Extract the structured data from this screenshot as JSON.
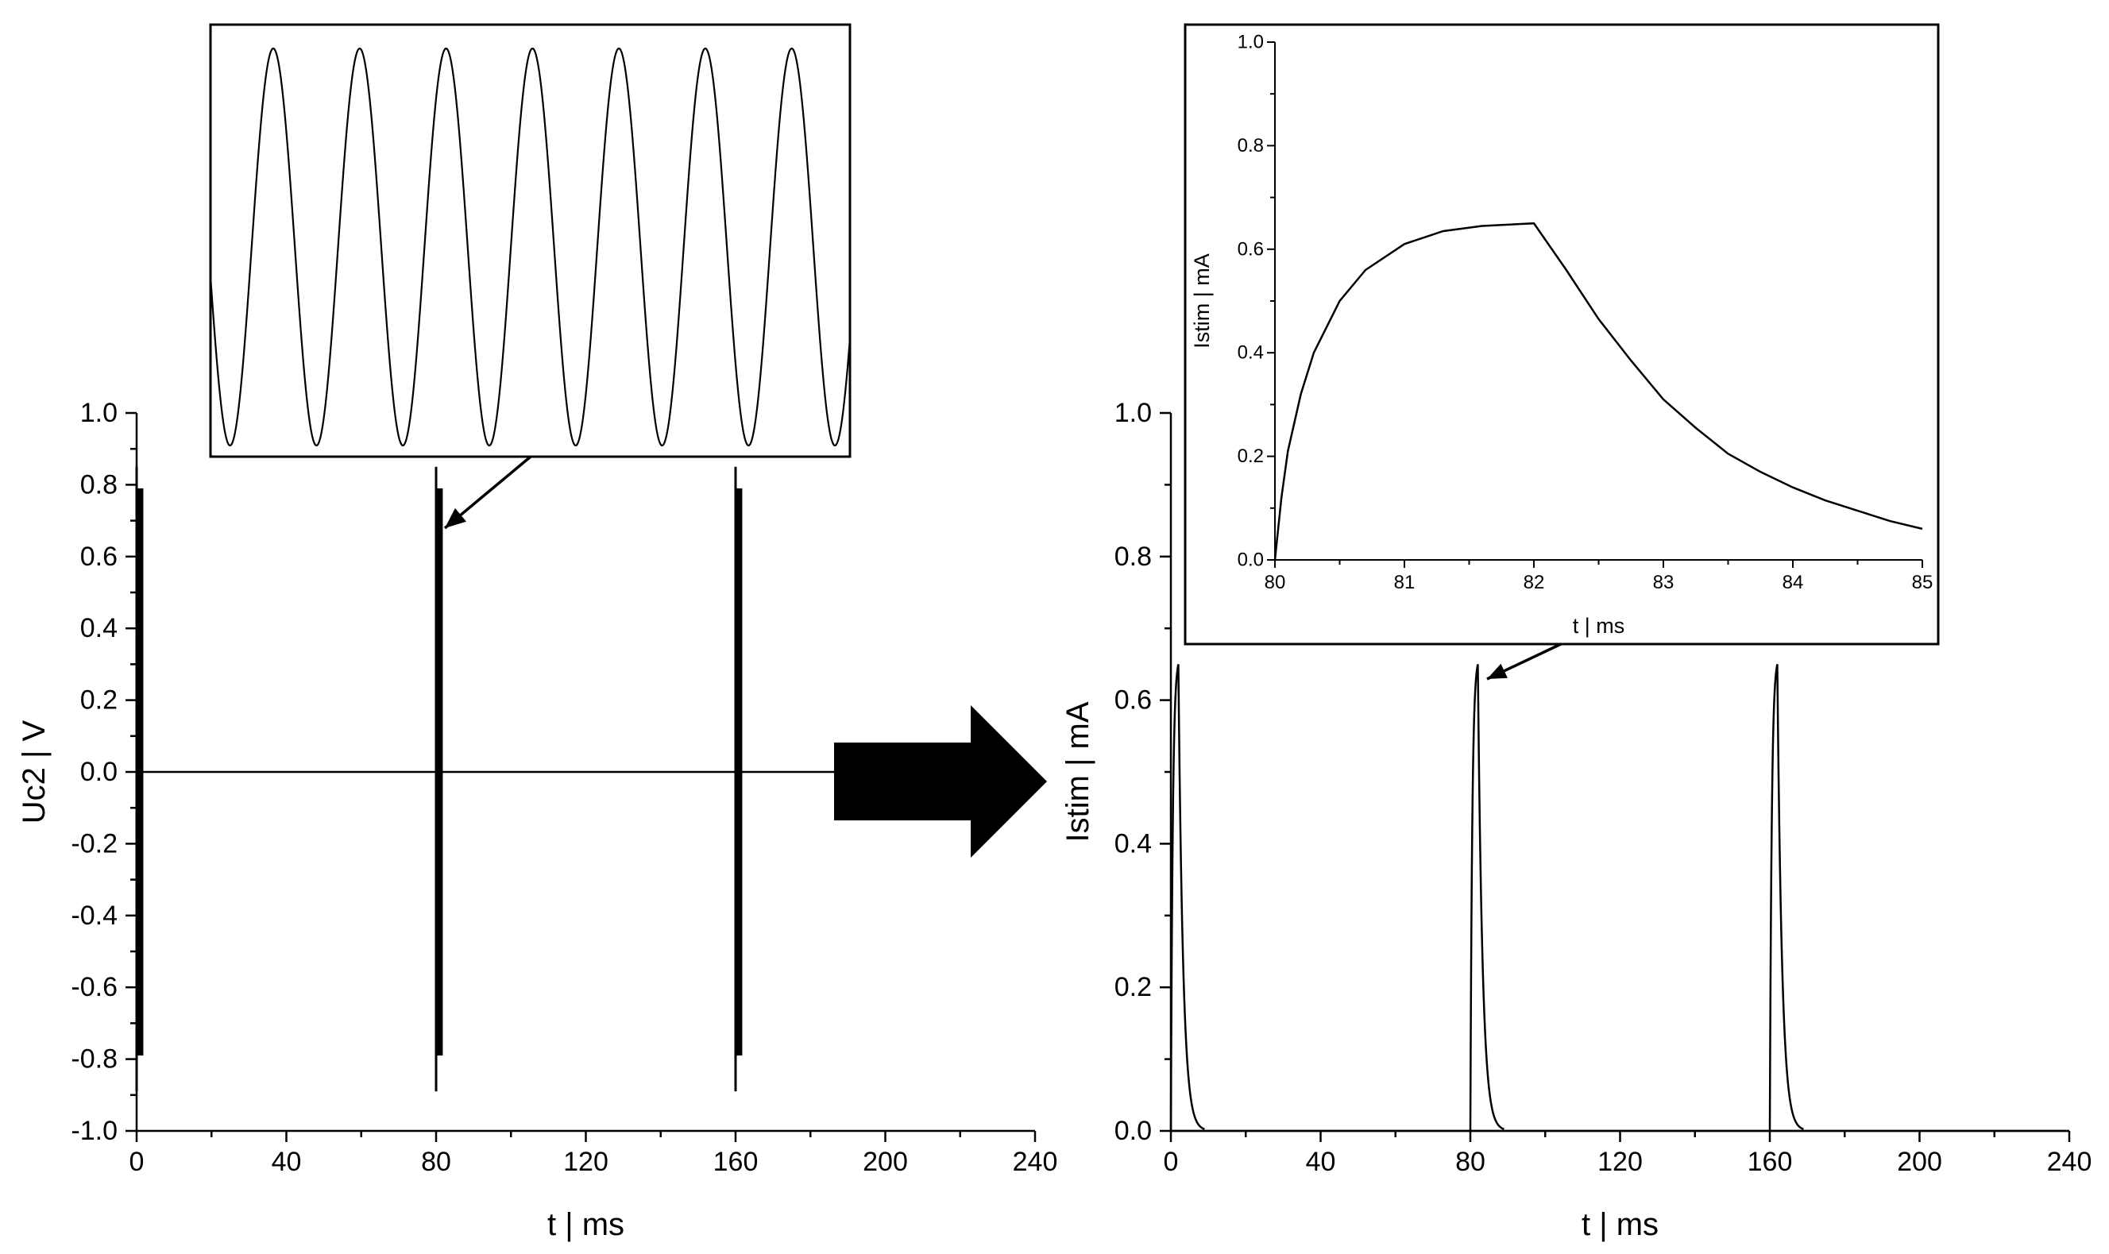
{
  "chart_data": [
    {
      "type": "line",
      "title": "",
      "xlabel": "t | ms",
      "ylabel": "Uc2 | V",
      "xlim": [
        0,
        240
      ],
      "ylim": [
        -1.0,
        1.0
      ],
      "xticks": [
        "0",
        "40",
        "80",
        "120",
        "160",
        "200",
        "240"
      ],
      "yticks": [
        "-1.0",
        "-0.8",
        "-0.6",
        "-0.4",
        "-0.2",
        "0.0",
        "0.2",
        "0.4",
        "0.6",
        "0.8",
        "1.0"
      ],
      "grid": false,
      "series": [
        {
          "bursts": [
            {
              "t_start": 0,
              "t_end": 2,
              "amplitude": 0.79,
              "peak_transient": 0.85
            },
            {
              "t_start": 80,
              "t_end": 82,
              "amplitude": 0.79,
              "peak_transient": 0.85
            },
            {
              "t_start": 160,
              "t_end": 162,
              "amplitude": 0.79,
              "peak_transient": 0.85
            }
          ],
          "x": [
            0,
            2,
            80,
            82,
            160,
            162,
            240
          ],
          "y": [
            0,
            0,
            0,
            0,
            0,
            0,
            0
          ]
        }
      ]
    },
    {
      "type": "line",
      "title": "",
      "xlabel": "",
      "ylabel": "",
      "inset_of": "Uc2 | V",
      "grid": false,
      "series": [
        {
          "waveform": "sine",
          "cycles": 7.4
        }
      ]
    },
    {
      "type": "line",
      "title": "",
      "xlabel": "t | ms",
      "ylabel": "Istim | mA",
      "xlim": [
        0,
        240
      ],
      "ylim": [
        0.0,
        1.0
      ],
      "xticks": [
        "0",
        "40",
        "80",
        "120",
        "160",
        "200",
        "240"
      ],
      "yticks": [
        "0.0",
        "0.2",
        "0.4",
        "0.6",
        "0.8",
        "1.0"
      ],
      "grid": false,
      "series": [
        {
          "pulses": [
            {
              "t_start": 0,
              "t_peak": 2,
              "peak": 0.65,
              "t_zero": 9
            },
            {
              "t_start": 80,
              "t_peak": 82,
              "peak": 0.65,
              "t_zero": 89
            },
            {
              "t_start": 160,
              "t_peak": 162,
              "peak": 0.65,
              "t_zero": 169
            }
          ]
        }
      ]
    },
    {
      "type": "line",
      "title": "",
      "xlabel": "t | ms",
      "ylabel": "Istim | mA",
      "xlim": [
        80,
        85
      ],
      "ylim": [
        0.0,
        1.0
      ],
      "xticks": [
        "80",
        "81",
        "82",
        "83",
        "84",
        "85"
      ],
      "yticks": [
        "0.0",
        "0.2",
        "0.4",
        "0.6",
        "0.8",
        "1.0"
      ],
      "grid": false,
      "series": [
        {
          "x": [
            80.0,
            80.05,
            80.1,
            80.2,
            80.3,
            80.5,
            80.7,
            81.0,
            81.3,
            81.6,
            82.0,
            82.25,
            82.5,
            82.75,
            83.0,
            83.25,
            83.5,
            83.75,
            84.0,
            84.25,
            84.5,
            84.75,
            85.0
          ],
          "y": [
            0.0,
            0.12,
            0.21,
            0.32,
            0.4,
            0.5,
            0.56,
            0.61,
            0.635,
            0.645,
            0.65,
            0.56,
            0.465,
            0.385,
            0.31,
            0.255,
            0.205,
            0.17,
            0.14,
            0.115,
            0.095,
            0.075,
            0.06
          ]
        }
      ]
    }
  ]
}
